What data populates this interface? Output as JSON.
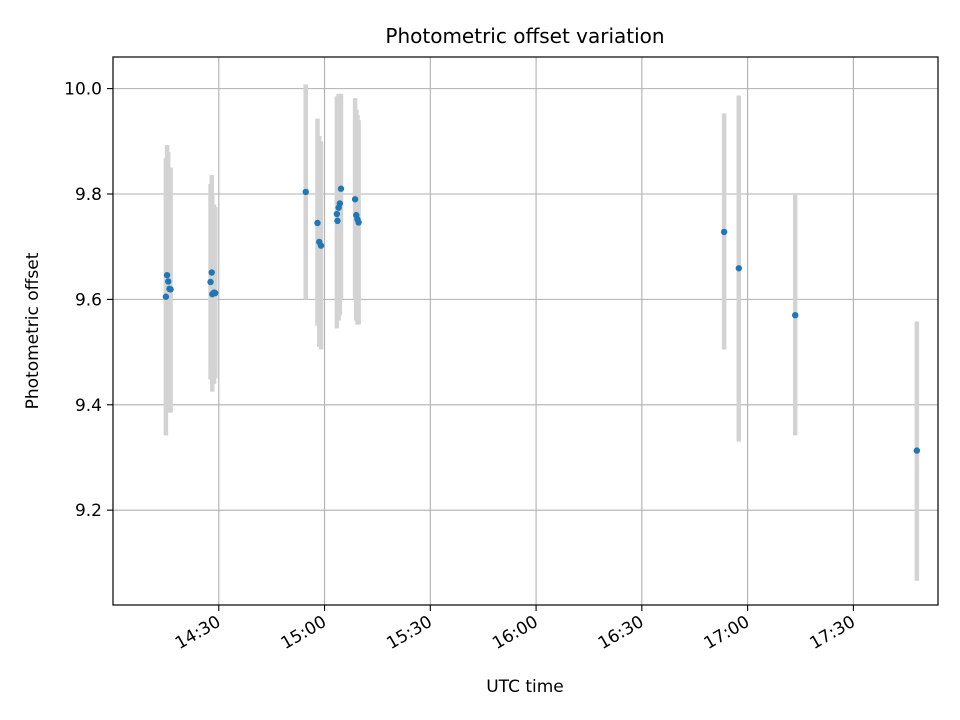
{
  "chart_data": {
    "type": "scatter",
    "title": "Photometric offset variation",
    "xlabel": "UTC time",
    "ylabel": "Photometric offset",
    "x_unit": "UTC time (HH:MM)",
    "xlim": [
      "14:00",
      "17:54"
    ],
    "ylim": [
      9.02,
      10.06
    ],
    "grid": true,
    "x_ticks": [
      {
        "value": "14:30",
        "label": "14:30"
      },
      {
        "value": "15:00",
        "label": "15:00"
      },
      {
        "value": "15:30",
        "label": "15:30"
      },
      {
        "value": "16:00",
        "label": "16:00"
      },
      {
        "value": "16:30",
        "label": "16:30"
      },
      {
        "value": "17:00",
        "label": "17:00"
      },
      {
        "value": "17:30",
        "label": "17:30"
      }
    ],
    "y_ticks": [
      {
        "value": 9.2,
        "label": "9.2"
      },
      {
        "value": 9.4,
        "label": "9.4"
      },
      {
        "value": 9.6,
        "label": "9.6"
      },
      {
        "value": 9.8,
        "label": "9.8"
      },
      {
        "value": 10.0,
        "label": "10.0"
      }
    ],
    "point_color": "#1f77b4",
    "errorbar_color": "#d3d3d3",
    "points": [
      {
        "t": "14:15:00",
        "y": 9.605,
        "lo": 9.342,
        "hi": 9.868
      },
      {
        "t": "14:15:20",
        "y": 9.646,
        "lo": 9.4,
        "hi": 9.893
      },
      {
        "t": "14:15:40",
        "y": 9.634,
        "lo": 9.385,
        "hi": 9.88
      },
      {
        "t": "14:16:00",
        "y": 9.62,
        "lo": 9.39,
        "hi": 9.85
      },
      {
        "t": "14:16:20",
        "y": 9.619,
        "lo": 9.385,
        "hi": 9.85
      },
      {
        "t": "14:27:40",
        "y": 9.633,
        "lo": 9.448,
        "hi": 9.819
      },
      {
        "t": "14:28:00",
        "y": 9.651,
        "lo": 9.462,
        "hi": 9.836
      },
      {
        "t": "14:28:10",
        "y": 9.61,
        "lo": 9.425,
        "hi": 9.8
      },
      {
        "t": "14:28:40",
        "y": 9.613,
        "lo": 9.44,
        "hi": 9.78
      },
      {
        "t": "14:29:00",
        "y": 9.612,
        "lo": 9.45,
        "hi": 9.775
      },
      {
        "t": "14:54:40",
        "y": 9.804,
        "lo": 9.6,
        "hi": 10.008
      },
      {
        "t": "14:58:00",
        "y": 9.745,
        "lo": 9.55,
        "hi": 9.943
      },
      {
        "t": "14:58:30",
        "y": 9.709,
        "lo": 9.51,
        "hi": 9.91
      },
      {
        "t": "14:59:00",
        "y": 9.702,
        "lo": 9.505,
        "hi": 9.9
      },
      {
        "t": "15:03:30",
        "y": 9.762,
        "lo": 9.545,
        "hi": 9.985
      },
      {
        "t": "15:03:40",
        "y": 9.749,
        "lo": 9.56,
        "hi": 9.94
      },
      {
        "t": "15:04:00",
        "y": 9.774,
        "lo": 9.56,
        "hi": 9.99
      },
      {
        "t": "15:04:20",
        "y": 9.782,
        "lo": 9.57,
        "hi": 9.99
      },
      {
        "t": "15:04:40",
        "y": 9.81,
        "lo": 9.6,
        "hi": 9.99
      },
      {
        "t": "15:08:40",
        "y": 9.79,
        "lo": 9.6,
        "hi": 9.982
      },
      {
        "t": "15:09:00",
        "y": 9.76,
        "lo": 9.56,
        "hi": 9.96
      },
      {
        "t": "15:09:20",
        "y": 9.752,
        "lo": 9.552,
        "hi": 9.95
      },
      {
        "t": "15:09:40",
        "y": 9.746,
        "lo": 9.552,
        "hi": 9.94
      },
      {
        "t": "16:53:20",
        "y": 9.728,
        "lo": 9.505,
        "hi": 9.953
      },
      {
        "t": "16:57:30",
        "y": 9.659,
        "lo": 9.33,
        "hi": 9.987
      },
      {
        "t": "17:13:30",
        "y": 9.57,
        "lo": 9.342,
        "hi": 9.8
      },
      {
        "t": "17:48:00",
        "y": 9.313,
        "lo": 9.066,
        "hi": 9.558
      }
    ]
  }
}
